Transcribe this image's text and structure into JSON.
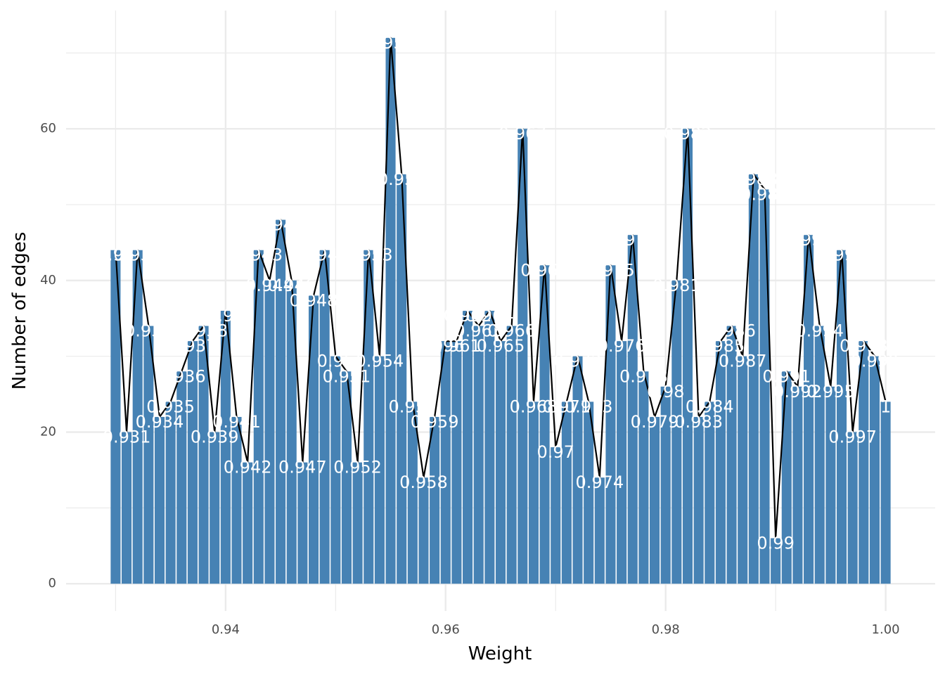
{
  "chart_data": {
    "type": "bar",
    "xlabel": "Weight",
    "ylabel": "Number of edges",
    "xlim": [
      0.9255,
      1.0045
    ],
    "ylim": [
      -3.6,
      75.6
    ],
    "x_ticks": [
      0.94,
      0.96,
      0.98,
      1.0
    ],
    "x_tick_labels": [
      "0.94",
      "0.96",
      "0.98",
      "1.00"
    ],
    "x_minor_ticks": [
      0.93,
      0.95,
      0.97,
      0.99
    ],
    "y_ticks": [
      0,
      20,
      40,
      60
    ],
    "y_tick_labels": [
      "0",
      "20",
      "40",
      "60"
    ],
    "y_minor_ticks": [
      10,
      30,
      50,
      70
    ],
    "grid": true,
    "bar_color": "#4682b4",
    "line_color": "#000000",
    "label_color": "#ffffff",
    "series": [
      {
        "x": [
          0.93,
          0.931,
          0.932,
          0.933,
          0.934,
          0.935,
          0.936,
          0.937,
          0.938,
          0.939,
          0.94,
          0.941,
          0.942,
          0.943,
          0.944,
          0.945,
          0.946,
          0.947,
          0.948,
          0.949,
          0.95,
          0.951,
          0.952,
          0.953,
          0.954,
          0.955,
          0.956,
          0.957,
          0.958,
          0.959,
          0.96,
          0.961,
          0.962,
          0.963,
          0.964,
          0.965,
          0.966,
          0.967,
          0.968,
          0.969,
          0.97,
          0.971,
          0.972,
          0.973,
          0.974,
          0.975,
          0.976,
          0.977,
          0.978,
          0.979,
          0.98,
          0.981,
          0.982,
          0.983,
          0.984,
          0.985,
          0.986,
          0.987,
          0.988,
          0.989,
          0.99,
          0.991,
          0.992,
          0.993,
          0.994,
          0.995,
          0.996,
          0.997,
          0.998,
          0.999,
          1.0
        ],
        "values": [
          44,
          20,
          44,
          34,
          22,
          24,
          28,
          32,
          34,
          20,
          36,
          22,
          16,
          44,
          40,
          48,
          40,
          16,
          38,
          44,
          30,
          28,
          16,
          44,
          30,
          72,
          54,
          24,
          14,
          22,
          32,
          32,
          36,
          34,
          36,
          32,
          34,
          60,
          24,
          42,
          18,
          24,
          30,
          24,
          14,
          42,
          32,
          46,
          28,
          22,
          26,
          40,
          60,
          22,
          24,
          32,
          34,
          30,
          54,
          52,
          6,
          28,
          26,
          46,
          34,
          26,
          44,
          20,
          32,
          30,
          24
        ],
        "labels": [
          "0.93",
          "0.931",
          "0.932",
          "0.933",
          "0.934",
          "0.935",
          "0.936",
          "0.937",
          "0.938",
          "0.939",
          "0.94",
          "0.941",
          "0.942",
          "0.943",
          "0.944",
          "0.945",
          "0.946",
          "0.947",
          "0.948",
          "0.949",
          "0.95",
          "0.951",
          "0.952",
          "0.953",
          "0.954",
          "0.955",
          "0.956",
          "0.957",
          "0.958",
          "0.959",
          "0.96",
          "0.961",
          "0.962",
          "0.963",
          "0.964",
          "0.965",
          "0.966",
          "0.967",
          "0.968",
          "0.969",
          "0.97",
          "0.971",
          "0.972",
          "0.973",
          "0.974",
          "0.975",
          "0.976",
          "0.977",
          "0.978",
          "0.979",
          "0.98",
          "0.981",
          "0.982",
          "0.983",
          "0.984",
          "0.985",
          "0.986",
          "0.987",
          "0.988",
          "0.989",
          "0.99",
          "0.991",
          "0.992",
          "0.993",
          "0.994",
          "0.995",
          "0.996",
          "0.997",
          "0.998",
          "0.999",
          "1"
        ]
      }
    ]
  }
}
